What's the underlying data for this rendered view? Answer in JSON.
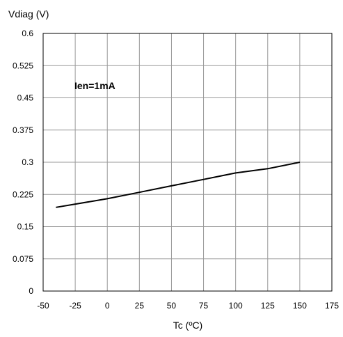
{
  "chart_data": {
    "type": "line",
    "title": "",
    "ylabel": "Vdiag (V)",
    "xlabel": "Tc (ºC)",
    "annotation": "Ien=1mA",
    "xlim": [
      -50,
      175
    ],
    "ylim": [
      0,
      0.6
    ],
    "x_ticks": [
      "-50",
      "-25",
      "0",
      "25",
      "50",
      "75",
      "100",
      "125",
      "150",
      "175"
    ],
    "y_ticks": [
      "0",
      "0.075",
      "0.15",
      "0.225",
      "0.3",
      "0.375",
      "0.45",
      "0.525",
      "0.6"
    ],
    "grid": true,
    "legend": "none",
    "series": [
      {
        "x": [
          -40,
          0,
          25,
          50,
          75,
          100,
          125,
          150
        ],
        "values": [
          0.195,
          0.215,
          0.23,
          0.245,
          0.26,
          0.275,
          0.285,
          0.3
        ]
      }
    ]
  },
  "colors": {
    "line": "#000000",
    "grid": "#999999",
    "background": "#ffffff"
  }
}
